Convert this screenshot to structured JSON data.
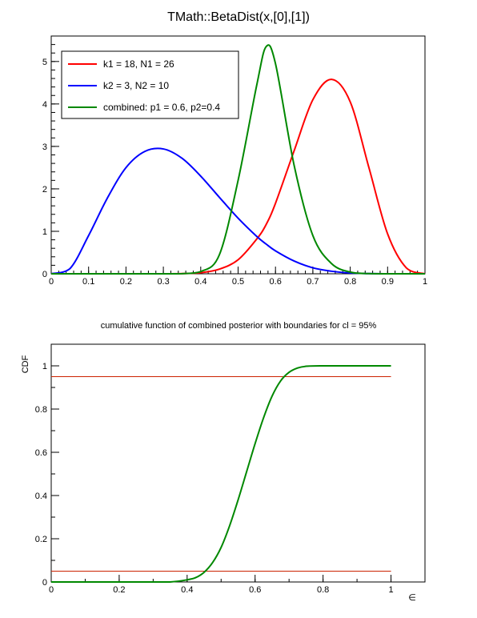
{
  "chart_data": [
    {
      "type": "line",
      "title": "TMath::BetaDist(x,[0],[1])",
      "xlabel": "",
      "ylabel": "",
      "xlim": [
        0,
        1
      ],
      "ylim": [
        0,
        5.6
      ],
      "x_ticks": [
        "0",
        "0.1",
        "0.2",
        "0.3",
        "0.4",
        "0.5",
        "0.6",
        "0.7",
        "0.8",
        "0.9",
        "1"
      ],
      "y_ticks": [
        "0",
        "1",
        "2",
        "3",
        "4",
        "5"
      ],
      "legend_position": "top-left",
      "grid": false,
      "x": [
        0.0,
        0.05,
        0.1,
        0.15,
        0.2,
        0.25,
        0.3,
        0.35,
        0.4,
        0.45,
        0.5,
        0.55,
        0.575,
        0.6,
        0.65,
        0.7,
        0.75,
        0.8,
        0.85,
        0.9,
        0.95,
        1.0
      ],
      "series": [
        {
          "name": "k1 = 18, N1 = 26",
          "color": "#ff0000",
          "values": [
            0,
            0,
            0,
            0,
            0,
            0,
            0.0004,
            0.004,
            0.026,
            0.11,
            0.33,
            0.82,
            1.16,
            1.66,
            2.9,
            4.1,
            4.58,
            4.05,
            2.5,
            0.94,
            0.14,
            0
          ]
        },
        {
          "name": "k2 = 3, N2 = 10",
          "color": "#0000ff",
          "values": [
            0,
            0.12,
            0.9,
            1.78,
            2.5,
            2.88,
            2.94,
            2.72,
            2.3,
            1.8,
            1.31,
            0.88,
            0.7,
            0.54,
            0.3,
            0.14,
            0.06,
            0.018,
            0.004,
            0.0004,
            0,
            0
          ]
        },
        {
          "name": "combined: p1 = 0.6, p2=0.4",
          "color": "#008800",
          "values": [
            0,
            0,
            0,
            0,
            0,
            0,
            0.0001,
            0.003,
            0.05,
            0.45,
            2.2,
            4.45,
            5.35,
            4.95,
            2.55,
            0.9,
            0.24,
            0.04,
            0.004,
            0,
            0,
            0
          ]
        }
      ]
    },
    {
      "type": "line",
      "title": "cumulative function of combined posterior with boundaries for cl = 95%",
      "xlabel": "∈",
      "ylabel": "CDF",
      "xlim": [
        0,
        1.1
      ],
      "ylim": [
        0,
        1.1
      ],
      "x_ticks": [
        "0",
        "0.2",
        "0.4",
        "0.6",
        "0.8",
        "1"
      ],
      "y_ticks": [
        "0",
        "0.2",
        "0.4",
        "0.6",
        "0.8",
        "1"
      ],
      "grid": false,
      "x": [
        0.0,
        0.3,
        0.35,
        0.4,
        0.425,
        0.45,
        0.475,
        0.5,
        0.525,
        0.55,
        0.575,
        0.6,
        0.625,
        0.65,
        0.675,
        0.7,
        0.725,
        0.75,
        0.8,
        0.85,
        0.9,
        1.0
      ],
      "series": [
        {
          "name": "",
          "color": "#008800",
          "values": [
            0,
            0,
            0.0002,
            0.01,
            0.02,
            0.045,
            0.09,
            0.16,
            0.26,
            0.38,
            0.51,
            0.64,
            0.76,
            0.86,
            0.93,
            0.97,
            0.99,
            0.998,
            1.0,
            1.0,
            1.0,
            1.0
          ]
        }
      ],
      "boundaries": {
        "color": "#cc2200",
        "lower": 0.05,
        "upper": 0.95,
        "x_range": [
          0,
          1
        ]
      }
    }
  ]
}
